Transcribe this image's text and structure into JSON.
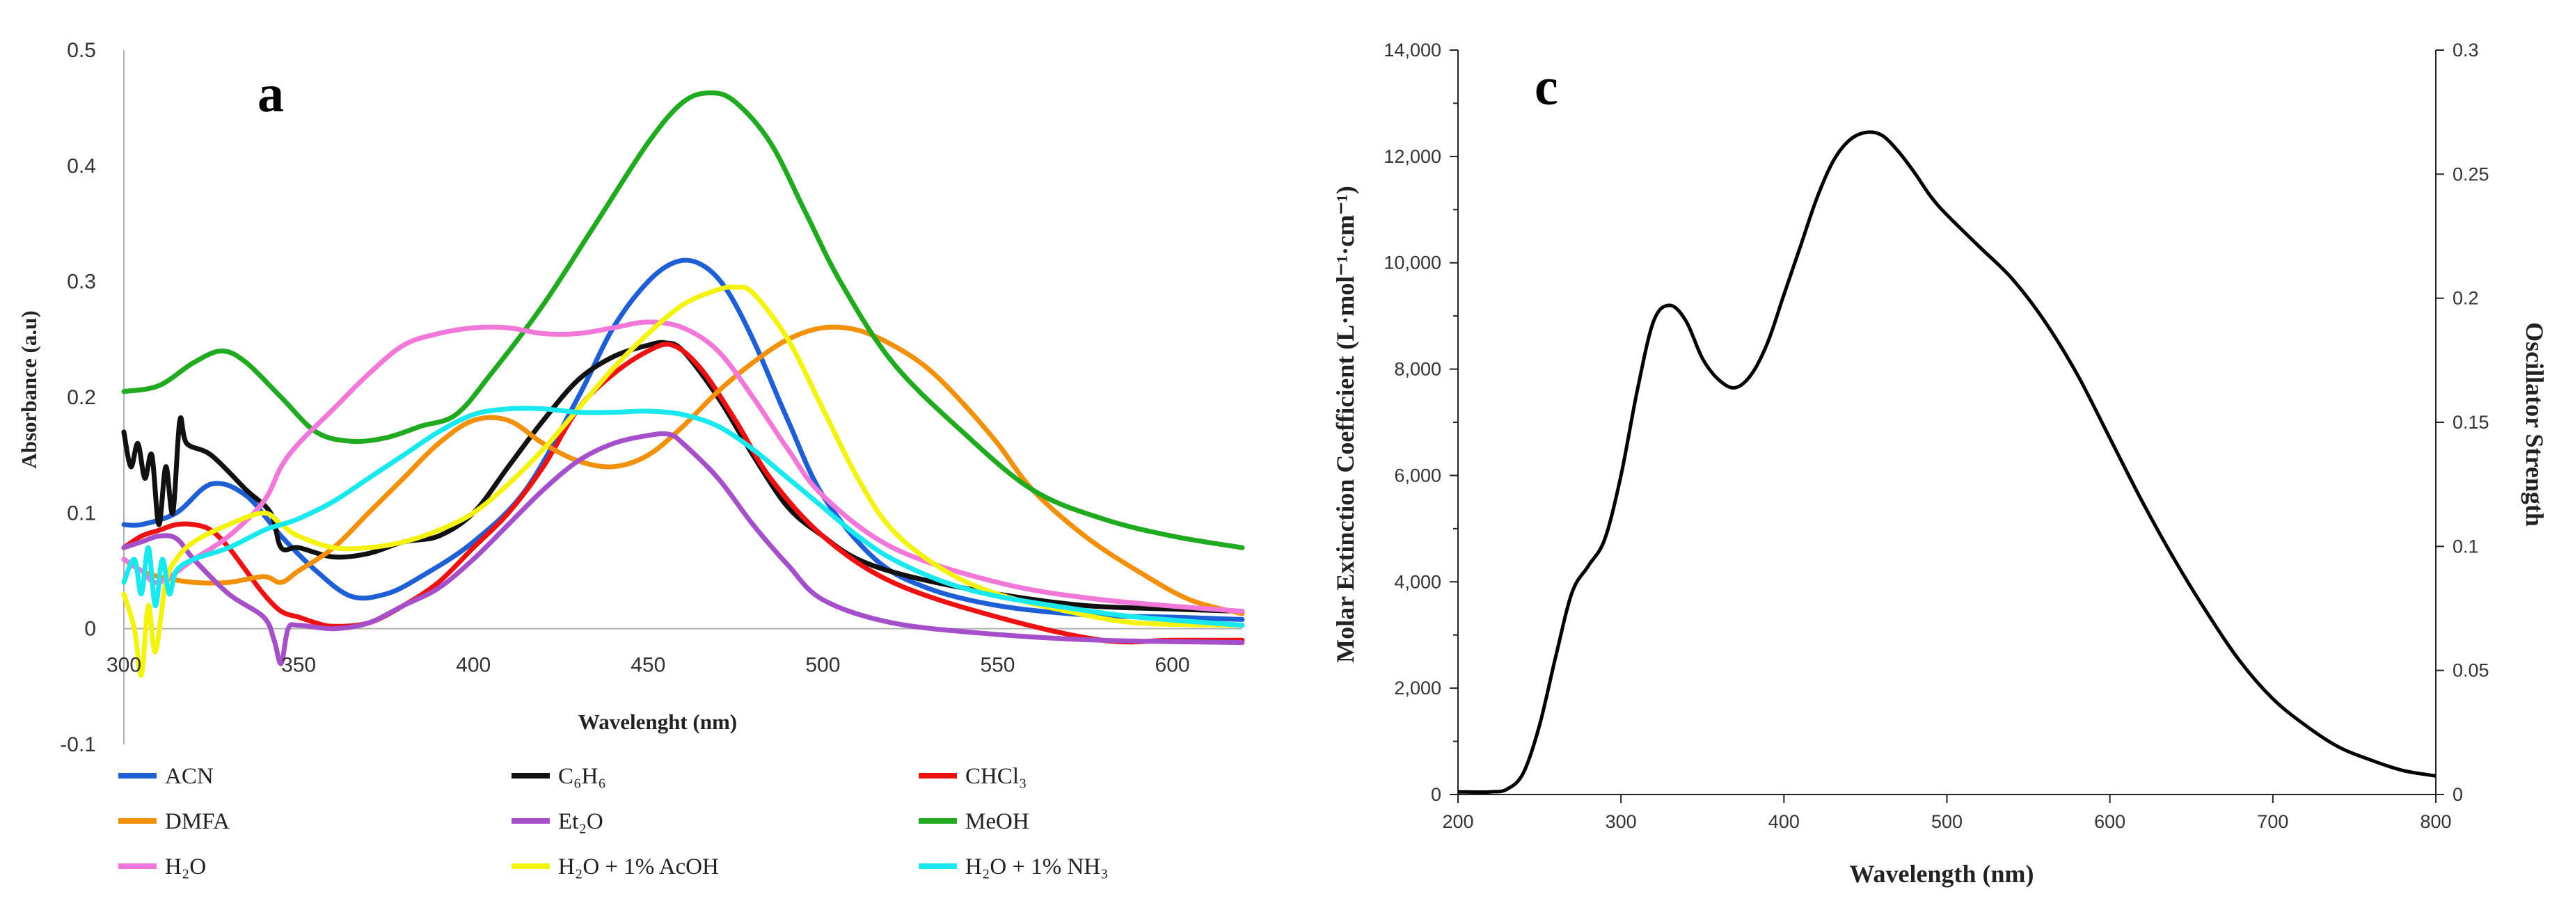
{
  "chart_data": [
    {
      "panel_label": "a",
      "type": "line",
      "xlabel": "Wavelenght (nm)",
      "ylabel": "Absorbance (a.u)",
      "xlim": [
        300,
        620
      ],
      "ylim": [
        -0.1,
        0.5
      ],
      "xticks": [
        "300",
        "350",
        "400",
        "450",
        "500",
        "550",
        "600"
      ],
      "yticks": [
        "-0.1",
        "0",
        "0.1",
        "0.2",
        "0.3",
        "0.4",
        "0.5"
      ],
      "series": [
        {
          "name": "ACN",
          "color": "#1f5fd6",
          "x": [
            300,
            305,
            315,
            325,
            335,
            345,
            355,
            365,
            375,
            385,
            400,
            415,
            430,
            440,
            450,
            458,
            465,
            472,
            480,
            490,
            500,
            515,
            530,
            550,
            575,
            600,
            620
          ],
          "y": [
            0.09,
            0.09,
            0.1,
            0.125,
            0.115,
            0.08,
            0.05,
            0.028,
            0.03,
            0.045,
            0.075,
            0.12,
            0.2,
            0.26,
            0.3,
            0.317,
            0.315,
            0.295,
            0.25,
            0.18,
            0.115,
            0.06,
            0.035,
            0.02,
            0.012,
            0.01,
            0.008
          ]
        },
        {
          "name": "C₆H₆",
          "color": "#111111",
          "x": [
            300,
            302,
            304,
            306,
            308,
            310,
            312,
            314,
            316,
            318,
            325,
            335,
            342,
            345,
            350,
            360,
            370,
            380,
            390,
            400,
            410,
            420,
            430,
            440,
            450,
            455,
            460,
            470,
            480,
            490,
            500,
            510,
            525,
            550,
            575,
            600,
            620
          ],
          "y": [
            0.17,
            0.14,
            0.16,
            0.13,
            0.15,
            0.09,
            0.14,
            0.1,
            0.18,
            0.16,
            0.15,
            0.12,
            0.1,
            0.07,
            0.07,
            0.062,
            0.065,
            0.075,
            0.08,
            0.1,
            0.14,
            0.18,
            0.215,
            0.235,
            0.245,
            0.247,
            0.24,
            0.2,
            0.15,
            0.105,
            0.08,
            0.06,
            0.045,
            0.03,
            0.02,
            0.017,
            0.015
          ]
        },
        {
          "name": "CHCl₃",
          "color": "#ee1111",
          "x": [
            300,
            305,
            310,
            315,
            320,
            325,
            330,
            335,
            340,
            345,
            350,
            355,
            360,
            370,
            380,
            390,
            400,
            410,
            420,
            430,
            440,
            450,
            457,
            465,
            475,
            485,
            500,
            520,
            550,
            580,
            600,
            620
          ],
          "y": [
            0.07,
            0.08,
            0.085,
            0.09,
            0.09,
            0.085,
            0.07,
            0.05,
            0.03,
            0.015,
            0.01,
            0.005,
            0.002,
            0.005,
            0.02,
            0.04,
            0.07,
            0.1,
            0.14,
            0.19,
            0.22,
            0.24,
            0.245,
            0.225,
            0.18,
            0.13,
            0.08,
            0.04,
            0.01,
            -0.01,
            -0.01,
            -0.01
          ]
        },
        {
          "name": "DMFA",
          "color": "#f2900a",
          "x": [
            300,
            305,
            310,
            320,
            330,
            340,
            345,
            350,
            360,
            370,
            380,
            390,
            400,
            410,
            420,
            430,
            440,
            450,
            460,
            470,
            480,
            490,
            500,
            510,
            520,
            530,
            540,
            550,
            560,
            575,
            590,
            605,
            620
          ],
          "y": [
            0.06,
            0.05,
            0.045,
            0.04,
            0.04,
            0.045,
            0.04,
            0.05,
            0.07,
            0.1,
            0.13,
            0.16,
            0.18,
            0.18,
            0.16,
            0.145,
            0.14,
            0.15,
            0.175,
            0.205,
            0.23,
            0.25,
            0.26,
            0.258,
            0.245,
            0.225,
            0.195,
            0.16,
            0.12,
            0.08,
            0.05,
            0.025,
            0.013
          ]
        },
        {
          "name": "Et₂O",
          "color": "#a64fcb",
          "x": [
            300,
            305,
            310,
            315,
            320,
            330,
            340,
            343,
            345,
            347,
            350,
            360,
            370,
            380,
            390,
            400,
            410,
            420,
            430,
            440,
            450,
            456,
            460,
            470,
            480,
            490,
            500,
            520,
            550,
            580,
            620
          ],
          "y": [
            0.07,
            0.075,
            0.08,
            0.078,
            0.06,
            0.03,
            0.01,
            -0.01,
            -0.03,
            0.0,
            0.003,
            0.0,
            0.005,
            0.02,
            0.035,
            0.06,
            0.09,
            0.12,
            0.145,
            0.16,
            0.167,
            0.168,
            0.16,
            0.13,
            0.09,
            0.055,
            0.025,
            0.005,
            -0.005,
            -0.01,
            -0.012
          ]
        },
        {
          "name": "MeOH",
          "color": "#20aa20",
          "x": [
            300,
            310,
            320,
            328,
            335,
            345,
            355,
            365,
            375,
            385,
            395,
            405,
            420,
            435,
            450,
            460,
            468,
            475,
            485,
            495,
            505,
            520,
            540,
            560,
            580,
            600,
            620
          ],
          "y": [
            0.205,
            0.21,
            0.23,
            0.24,
            0.23,
            0.2,
            0.17,
            0.162,
            0.165,
            0.175,
            0.185,
            0.22,
            0.28,
            0.35,
            0.42,
            0.455,
            0.463,
            0.455,
            0.42,
            0.36,
            0.3,
            0.23,
            0.17,
            0.12,
            0.095,
            0.08,
            0.07
          ]
        },
        {
          "name": "H₂O",
          "color": "#f177d8",
          "x": [
            300,
            305,
            310,
            320,
            330,
            340,
            345,
            350,
            360,
            370,
            380,
            390,
            400,
            410,
            420,
            430,
            440,
            450,
            460,
            470,
            480,
            490,
            500,
            520,
            550,
            580,
            620
          ],
          "y": [
            0.06,
            0.05,
            0.04,
            0.06,
            0.08,
            0.11,
            0.14,
            0.16,
            0.19,
            0.22,
            0.245,
            0.255,
            0.26,
            0.26,
            0.255,
            0.255,
            0.26,
            0.265,
            0.26,
            0.24,
            0.2,
            0.155,
            0.115,
            0.07,
            0.04,
            0.025,
            0.015
          ]
        },
        {
          "name": "H₂O + 1% AcOH",
          "color": "#f3f30f",
          "x": [
            300,
            303,
            305,
            307,
            309,
            312,
            315,
            320,
            330,
            340,
            345,
            350,
            360,
            370,
            380,
            390,
            400,
            410,
            420,
            430,
            440,
            450,
            460,
            470,
            475,
            480,
            490,
            500,
            510,
            520,
            535,
            550,
            570,
            590,
            620
          ],
          "y": [
            0.03,
            0.0,
            -0.04,
            0.02,
            -0.02,
            0.04,
            0.06,
            0.075,
            0.09,
            0.1,
            0.09,
            0.08,
            0.07,
            0.07,
            0.075,
            0.085,
            0.1,
            0.125,
            0.155,
            0.19,
            0.225,
            0.255,
            0.28,
            0.293,
            0.295,
            0.29,
            0.25,
            0.19,
            0.13,
            0.085,
            0.05,
            0.03,
            0.015,
            0.005,
            0.003
          ]
        },
        {
          "name": "H₂O + 1% NH₃",
          "color": "#19e8ee",
          "x": [
            300,
            303,
            305,
            307,
            309,
            311,
            313,
            315,
            320,
            330,
            340,
            345,
            350,
            360,
            370,
            380,
            390,
            400,
            410,
            420,
            430,
            440,
            450,
            460,
            470,
            480,
            490,
            500,
            510,
            520,
            535,
            550,
            570,
            590,
            620
          ],
          "y": [
            0.04,
            0.06,
            0.03,
            0.07,
            0.02,
            0.06,
            0.03,
            0.05,
            0.06,
            0.07,
            0.085,
            0.09,
            0.095,
            0.11,
            0.13,
            0.15,
            0.17,
            0.185,
            0.19,
            0.19,
            0.187,
            0.187,
            0.188,
            0.185,
            0.175,
            0.155,
            0.13,
            0.105,
            0.08,
            0.06,
            0.04,
            0.028,
            0.018,
            0.01,
            0.003
          ]
        }
      ]
    },
    {
      "panel_label": "c",
      "type": "line",
      "xlabel": "Wavelength (nm)",
      "ylabel": "Molar Extinction Coefficient (L·mol⁻¹·cm⁻¹)",
      "y2label": "Oscillator Strength",
      "xlim": [
        200,
        800
      ],
      "ylim": [
        0,
        14000
      ],
      "y2lim": [
        0,
        0.3
      ],
      "xticks": [
        "200",
        "300",
        "400",
        "500",
        "600",
        "700",
        "800"
      ],
      "yticks": [
        "0",
        "2,000",
        "4,000",
        "6,000",
        "8,000",
        "10,000",
        "12,000",
        "14,000"
      ],
      "y2ticks": [
        "0",
        "0.05",
        "0.1",
        "0.15",
        "0.2",
        "0.25",
        "0.3"
      ],
      "series": [
        {
          "name": "Molar extinction coefficient",
          "color": "#000000",
          "x": [
            200,
            220,
            230,
            240,
            250,
            260,
            270,
            280,
            290,
            300,
            310,
            320,
            330,
            340,
            350,
            360,
            370,
            380,
            390,
            400,
            410,
            420,
            430,
            440,
            450,
            460,
            470,
            480,
            490,
            500,
            520,
            540,
            560,
            580,
            600,
            620,
            640,
            660,
            680,
            700,
            720,
            740,
            760,
            780,
            800
          ],
          "y": [
            50,
            50,
            100,
            400,
            1300,
            2600,
            3800,
            4300,
            4800,
            6000,
            7600,
            8900,
            9200,
            8900,
            8200,
            7800,
            7650,
            7900,
            8500,
            9400,
            10300,
            11200,
            11900,
            12300,
            12450,
            12400,
            12100,
            11700,
            11250,
            10900,
            10300,
            9700,
            8900,
            7900,
            6700,
            5500,
            4400,
            3400,
            2500,
            1800,
            1300,
            900,
            650,
            450,
            350
          ]
        }
      ]
    }
  ]
}
